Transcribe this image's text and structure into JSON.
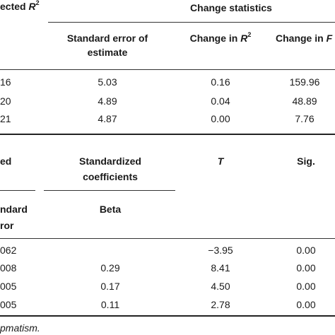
{
  "top_table": {
    "header": {
      "adjusted_r2_prefix": "ected ",
      "adjusted_r2_symbol": "R",
      "adjusted_r2_sup": "2",
      "change_statistics": "Change statistics",
      "std_error_line1": "Standard error of",
      "std_error_line2": "estimate",
      "change_r2_prefix": "Change in ",
      "change_r2_symbol": "R",
      "change_r2_sup": "2",
      "change_f_prefix": "Change in ",
      "change_f_symbol": "F"
    },
    "rows": [
      {
        "adjusted_r2": "16",
        "std_error": "5.03",
        "change_r2": "0.16",
        "change_f": "159.96"
      },
      {
        "adjusted_r2": "20",
        "std_error": "4.89",
        "change_r2": "0.04",
        "change_f": "48.89"
      },
      {
        "adjusted_r2": "21",
        "std_error": "4.87",
        "change_r2": "0.00",
        "change_f": "7.76"
      }
    ]
  },
  "bottom_table": {
    "header": {
      "unstd_partial": "ed",
      "std_coef_line1": "Standardized",
      "std_coef_line2": "coefficients",
      "t": "T",
      "sig": "Sig.",
      "std_error_line1": "ndard",
      "std_error_line2": "ror",
      "beta": "Beta"
    },
    "rows": [
      {
        "std_error": "062",
        "beta": "",
        "t": "−3.95",
        "sig": "0.00"
      },
      {
        "std_error": "008",
        "beta": "0.29",
        "t": "8.41",
        "sig": "0.00"
      },
      {
        "std_error": "005",
        "beta": "0.17",
        "t": "4.50",
        "sig": "0.00"
      },
      {
        "std_error": "005",
        "beta": "0.11",
        "t": "2.78",
        "sig": "0.00"
      }
    ]
  },
  "footnote": "pmatism."
}
